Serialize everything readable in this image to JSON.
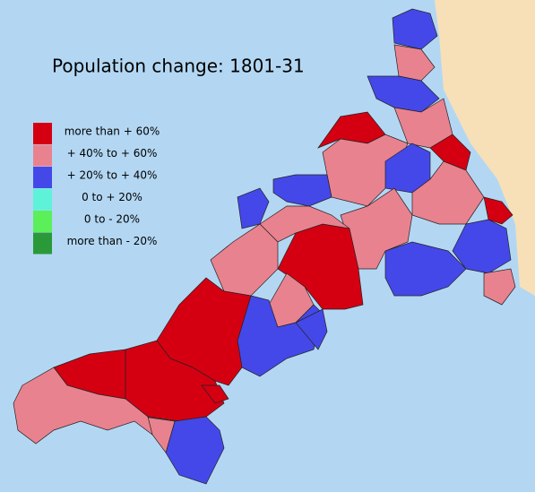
{
  "title": "Population change: 1801-31",
  "legend": [
    {
      "label": "more than + 60%",
      "color": "#d40012"
    },
    {
      "label": "+ 40% to + 60%",
      "color": "#e9828f"
    },
    {
      "label": "+ 20% to + 40%",
      "color": "#4548e8"
    },
    {
      "label": "0 to + 20%",
      "color": "#5ef2d8"
    },
    {
      "label": "0 to - 20%",
      "color": "#5bef5a"
    },
    {
      "label": "more than - 20%",
      "color": "#2a9a38"
    }
  ]
}
